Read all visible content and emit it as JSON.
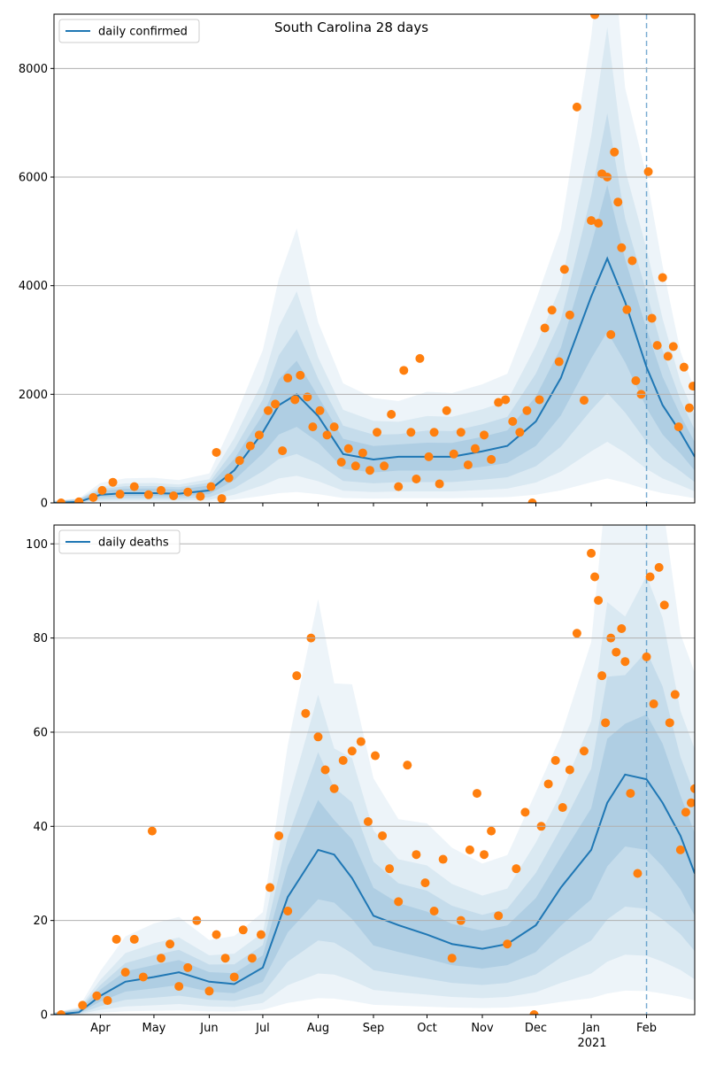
{
  "title": "South Carolina 28 days",
  "colors": {
    "line": "#1f77b4",
    "points": "#ff7f0e",
    "band": "#1f77b4",
    "grid": "#b0b0b0",
    "vline": "#1f77b4"
  },
  "x_axis": {
    "ticks": [
      "Apr",
      "May",
      "Jun",
      "Jul",
      "Aug",
      "Sep",
      "Oct",
      "Nov",
      "Dec",
      "Jan",
      "Feb"
    ],
    "tick_dates": [
      "2020-04-01",
      "2020-05-01",
      "2020-06-01",
      "2020-07-01",
      "2020-08-01",
      "2020-09-01",
      "2020-10-01",
      "2020-11-01",
      "2020-12-01",
      "2021-01-01",
      "2021-02-01"
    ],
    "year_label": "2021",
    "range": [
      "2020-03-06",
      "2021-02-28"
    ],
    "today_marker": "2021-02-01"
  },
  "chart_data": [
    {
      "type": "line",
      "legend": "daily confirmed",
      "legend_position": "top-left",
      "ylim": [
        0,
        9000
      ],
      "yticks": [
        "0",
        "2000",
        "4000",
        "6000",
        "8000"
      ],
      "ytick_values": [
        0,
        2000,
        4000,
        6000,
        8000
      ],
      "grid": "horizontal",
      "x": [
        "2020-03-06",
        "2020-03-20",
        "2020-04-01",
        "2020-04-15",
        "2020-05-01",
        "2020-05-15",
        "2020-06-01",
        "2020-06-15",
        "2020-07-01",
        "2020-07-10",
        "2020-07-20",
        "2020-08-01",
        "2020-08-15",
        "2020-09-01",
        "2020-09-15",
        "2020-10-01",
        "2020-10-15",
        "2020-11-01",
        "2020-11-15",
        "2020-12-01",
        "2020-12-15",
        "2021-01-01",
        "2021-01-10",
        "2021-01-20",
        "2021-02-01",
        "2021-02-10",
        "2021-02-20",
        "2021-02-28"
      ],
      "y": [
        0,
        20,
        150,
        180,
        180,
        170,
        230,
        600,
        1300,
        1800,
        2000,
        1600,
        900,
        800,
        850,
        850,
        850,
        950,
        1050,
        1500,
        2300,
        3800,
        4500,
        3700,
        2500,
        1800,
        1300,
        850
      ],
      "points": [
        [
          "2020-03-10",
          0
        ],
        [
          "2020-03-20",
          20
        ],
        [
          "2020-03-28",
          100
        ],
        [
          "2020-04-02",
          230
        ],
        [
          "2020-04-08",
          380
        ],
        [
          "2020-04-12",
          160
        ],
        [
          "2020-04-20",
          300
        ],
        [
          "2020-04-28",
          150
        ],
        [
          "2020-05-05",
          230
        ],
        [
          "2020-05-12",
          130
        ],
        [
          "2020-05-20",
          200
        ],
        [
          "2020-05-27",
          120
        ],
        [
          "2020-06-02",
          300
        ],
        [
          "2020-06-05",
          930
        ],
        [
          "2020-06-08",
          80
        ],
        [
          "2020-06-12",
          460
        ],
        [
          "2020-06-18",
          780
        ],
        [
          "2020-06-24",
          1050
        ],
        [
          "2020-06-29",
          1250
        ],
        [
          "2020-07-04",
          1700
        ],
        [
          "2020-07-08",
          1820
        ],
        [
          "2020-07-12",
          960
        ],
        [
          "2020-07-15",
          2300
        ],
        [
          "2020-07-19",
          1900
        ],
        [
          "2020-07-22",
          2350
        ],
        [
          "2020-07-26",
          1950
        ],
        [
          "2020-07-29",
          1400
        ],
        [
          "2020-08-02",
          1700
        ],
        [
          "2020-08-06",
          1250
        ],
        [
          "2020-08-10",
          1400
        ],
        [
          "2020-08-14",
          750
        ],
        [
          "2020-08-18",
          1000
        ],
        [
          "2020-08-22",
          680
        ],
        [
          "2020-08-26",
          920
        ],
        [
          "2020-08-30",
          600
        ],
        [
          "2020-09-03",
          1300
        ],
        [
          "2020-09-07",
          680
        ],
        [
          "2020-09-11",
          1630
        ],
        [
          "2020-09-15",
          300
        ],
        [
          "2020-09-18",
          2440
        ],
        [
          "2020-09-22",
          1300
        ],
        [
          "2020-09-25",
          440
        ],
        [
          "2020-09-27",
          2660
        ],
        [
          "2020-10-02",
          850
        ],
        [
          "2020-10-05",
          1300
        ],
        [
          "2020-10-08",
          350
        ],
        [
          "2020-10-12",
          1700
        ],
        [
          "2020-10-16",
          900
        ],
        [
          "2020-10-20",
          1300
        ],
        [
          "2020-10-24",
          700
        ],
        [
          "2020-10-28",
          1000
        ],
        [
          "2020-11-02",
          1250
        ],
        [
          "2020-11-06",
          800
        ],
        [
          "2020-11-10",
          1850
        ],
        [
          "2020-11-14",
          1900
        ],
        [
          "2020-11-18",
          1500
        ],
        [
          "2020-11-22",
          1300
        ],
        [
          "2020-11-26",
          1700
        ],
        [
          "2020-11-29",
          0
        ],
        [
          "2020-12-03",
          1900
        ],
        [
          "2020-12-06",
          3220
        ],
        [
          "2020-12-10",
          3550
        ],
        [
          "2020-12-14",
          2600
        ],
        [
          "2020-12-17",
          4300
        ],
        [
          "2020-12-20",
          3460
        ],
        [
          "2020-12-24",
          7290
        ],
        [
          "2020-12-28",
          1890
        ],
        [
          "2021-01-01",
          5200
        ],
        [
          "2021-01-03",
          8990
        ],
        [
          "2021-01-05",
          5150
        ],
        [
          "2021-01-07",
          6060
        ],
        [
          "2021-01-10",
          6000
        ],
        [
          "2021-01-12",
          3100
        ],
        [
          "2021-01-14",
          6460
        ],
        [
          "2021-01-16",
          5540
        ],
        [
          "2021-01-18",
          4700
        ],
        [
          "2021-01-21",
          3560
        ],
        [
          "2021-01-24",
          4460
        ],
        [
          "2021-01-26",
          2250
        ],
        [
          "2021-01-29",
          2000
        ],
        [
          "2021-02-02",
          6100
        ],
        [
          "2021-02-04",
          3400
        ],
        [
          "2021-02-07",
          2900
        ],
        [
          "2021-02-10",
          4150
        ],
        [
          "2021-02-13",
          2700
        ],
        [
          "2021-02-16",
          2880
        ],
        [
          "2021-02-19",
          1400
        ],
        [
          "2021-02-22",
          2500
        ],
        [
          "2021-02-25",
          1750
        ],
        [
          "2021-02-27",
          2150
        ]
      ]
    },
    {
      "type": "line",
      "legend": "daily deaths",
      "legend_position": "top-left",
      "ylim": [
        0,
        104
      ],
      "yticks": [
        "0",
        "20",
        "40",
        "60",
        "80",
        "100"
      ],
      "ytick_values": [
        0,
        20,
        40,
        60,
        80,
        100
      ],
      "grid": "horizontal",
      "x": [
        "2020-03-06",
        "2020-03-20",
        "2020-04-01",
        "2020-04-15",
        "2020-05-01",
        "2020-05-15",
        "2020-06-01",
        "2020-06-15",
        "2020-07-01",
        "2020-07-15",
        "2020-08-01",
        "2020-08-10",
        "2020-08-20",
        "2020-09-01",
        "2020-09-15",
        "2020-10-01",
        "2020-10-15",
        "2020-11-01",
        "2020-11-15",
        "2020-12-01",
        "2020-12-15",
        "2021-01-01",
        "2021-01-10",
        "2021-01-20",
        "2021-02-01",
        "2021-02-10",
        "2021-02-20",
        "2021-02-28"
      ],
      "y": [
        0,
        0.5,
        4,
        7,
        8,
        9,
        7,
        6.5,
        10,
        25,
        35,
        34,
        29,
        21,
        19,
        17,
        15,
        14,
        15,
        19,
        27,
        35,
        45,
        51,
        50,
        45,
        38,
        30
      ],
      "points": [
        [
          "2020-03-10",
          0
        ],
        [
          "2020-03-22",
          2
        ],
        [
          "2020-03-30",
          4
        ],
        [
          "2020-04-05",
          3
        ],
        [
          "2020-04-10",
          16
        ],
        [
          "2020-04-15",
          9
        ],
        [
          "2020-04-20",
          16
        ],
        [
          "2020-04-25",
          8
        ],
        [
          "2020-04-30",
          39
        ],
        [
          "2020-05-05",
          12
        ],
        [
          "2020-05-10",
          15
        ],
        [
          "2020-05-15",
          6
        ],
        [
          "2020-05-20",
          10
        ],
        [
          "2020-05-25",
          20
        ],
        [
          "2020-06-01",
          5
        ],
        [
          "2020-06-05",
          17
        ],
        [
          "2020-06-10",
          12
        ],
        [
          "2020-06-15",
          8
        ],
        [
          "2020-06-20",
          18
        ],
        [
          "2020-06-25",
          12
        ],
        [
          "2020-06-30",
          17
        ],
        [
          "2020-07-05",
          27
        ],
        [
          "2020-07-10",
          38
        ],
        [
          "2020-07-15",
          22
        ],
        [
          "2020-07-20",
          72
        ],
        [
          "2020-07-25",
          64
        ],
        [
          "2020-07-28",
          80
        ],
        [
          "2020-08-01",
          59
        ],
        [
          "2020-08-05",
          52
        ],
        [
          "2020-08-10",
          48
        ],
        [
          "2020-08-15",
          54
        ],
        [
          "2020-08-20",
          56
        ],
        [
          "2020-08-25",
          58
        ],
        [
          "2020-08-29",
          41
        ],
        [
          "2020-09-02",
          55
        ],
        [
          "2020-09-06",
          38
        ],
        [
          "2020-09-10",
          31
        ],
        [
          "2020-09-15",
          24
        ],
        [
          "2020-09-20",
          53
        ],
        [
          "2020-09-25",
          34
        ],
        [
          "2020-09-30",
          28
        ],
        [
          "2020-10-05",
          22
        ],
        [
          "2020-10-10",
          33
        ],
        [
          "2020-10-15",
          12
        ],
        [
          "2020-10-20",
          20
        ],
        [
          "2020-10-25",
          35
        ],
        [
          "2020-10-29",
          47
        ],
        [
          "2020-11-02",
          34
        ],
        [
          "2020-11-06",
          39
        ],
        [
          "2020-11-10",
          21
        ],
        [
          "2020-11-15",
          15
        ],
        [
          "2020-11-20",
          31
        ],
        [
          "2020-11-25",
          43
        ],
        [
          "2020-11-30",
          0
        ],
        [
          "2020-12-04",
          40
        ],
        [
          "2020-12-08",
          49
        ],
        [
          "2020-12-12",
          54
        ],
        [
          "2020-12-16",
          44
        ],
        [
          "2020-12-20",
          52
        ],
        [
          "2020-12-24",
          81
        ],
        [
          "2020-12-28",
          56
        ],
        [
          "2021-01-01",
          98
        ],
        [
          "2021-01-03",
          93
        ],
        [
          "2021-01-05",
          88
        ],
        [
          "2021-01-07",
          72
        ],
        [
          "2021-01-09",
          62
        ],
        [
          "2021-01-12",
          80
        ],
        [
          "2021-01-15",
          77
        ],
        [
          "2021-01-18",
          82
        ],
        [
          "2021-01-20",
          75
        ],
        [
          "2021-01-23",
          47
        ],
        [
          "2021-01-27",
          30
        ],
        [
          "2021-02-01",
          76
        ],
        [
          "2021-02-03",
          93
        ],
        [
          "2021-02-05",
          66
        ],
        [
          "2021-02-08",
          95
        ],
        [
          "2021-02-11",
          87
        ],
        [
          "2021-02-14",
          62
        ],
        [
          "2021-02-17",
          68
        ],
        [
          "2021-02-20",
          35
        ],
        [
          "2021-02-23",
          43
        ],
        [
          "2021-02-26",
          45
        ],
        [
          "2021-02-28",
          48
        ]
      ]
    }
  ]
}
